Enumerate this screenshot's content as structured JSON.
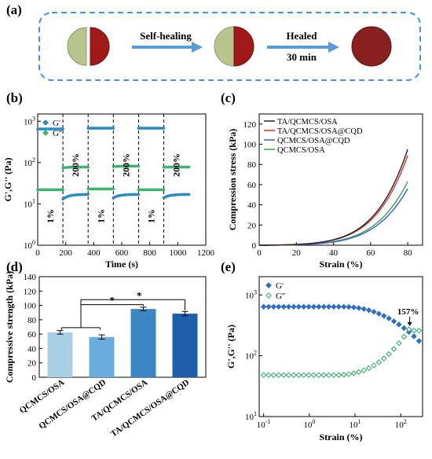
{
  "panels": {
    "a": {
      "label": "(a)",
      "arrow1_text": "Self-healing",
      "arrow2_line1": "Healed",
      "arrow2_line2": "30 min",
      "colors": {
        "dashed_border": "#4a90d9",
        "arrow": "#5b9bd5",
        "gel_green": "#b8c490",
        "gel_red": "#a01818",
        "gel_dark_red": "#8b2020"
      }
    },
    "b": {
      "label": "(b)"
    },
    "c": {
      "label": "(c)"
    },
    "d": {
      "label": "(d)"
    },
    "e": {
      "label": "(e)"
    }
  },
  "chart_data": [
    {
      "panel": "b",
      "type": "scatter",
      "xlabel": "Time (s)",
      "ylabel": "G',G'' (Pa)",
      "x_ticks": [
        0,
        200,
        400,
        600,
        800,
        1000,
        1200
      ],
      "xlim": [
        0,
        1200
      ],
      "y_scale": "log",
      "y_ticks": [
        "10^0",
        "10^1",
        "10^2",
        "10^3"
      ],
      "ylim": [
        1,
        1500
      ],
      "legend": [
        "G'",
        "G''"
      ],
      "legend_position": "top-left",
      "boundaries": [
        180,
        360,
        540,
        720,
        900
      ],
      "strain_annotations": [
        {
          "text": "1%",
          "x": 90
        },
        {
          "text": "200%",
          "x": 270
        },
        {
          "text": "1%",
          "x": 450
        },
        {
          "text": "200%",
          "x": 630
        },
        {
          "text": "1%",
          "x": 810
        },
        {
          "text": "200%",
          "x": 990
        }
      ],
      "series": [
        {
          "name": "G'",
          "color": "#2e8bc0",
          "segments": [
            {
              "x0": 0,
              "x1": 180,
              "y0": 650,
              "y1": 650
            },
            {
              "x0": 180,
              "x1": 360,
              "y0": 13,
              "y1": 17
            },
            {
              "x0": 360,
              "x1": 540,
              "y0": 680,
              "y1": 680
            },
            {
              "x0": 540,
              "x1": 720,
              "y0": 14,
              "y1": 17
            },
            {
              "x0": 720,
              "x1": 900,
              "y0": 680,
              "y1": 680
            },
            {
              "x0": 900,
              "x1": 1080,
              "y0": 14,
              "y1": 17
            }
          ]
        },
        {
          "name": "G''",
          "color": "#3cb371",
          "segments": [
            {
              "x0": 0,
              "x1": 180,
              "y0": 22,
              "y1": 22
            },
            {
              "x0": 180,
              "x1": 360,
              "y0": 75,
              "y1": 78
            },
            {
              "x0": 360,
              "x1": 540,
              "y0": 23,
              "y1": 23
            },
            {
              "x0": 540,
              "x1": 720,
              "y0": 80,
              "y1": 82
            },
            {
              "x0": 720,
              "x1": 900,
              "y0": 22,
              "y1": 22
            },
            {
              "x0": 900,
              "x1": 1080,
              "y0": 78,
              "y1": 78
            }
          ]
        }
      ]
    },
    {
      "panel": "c",
      "type": "line",
      "xlabel": "Strain (%)",
      "ylabel": "Compression stress (kPa)",
      "x_ticks": [
        0,
        20,
        40,
        60,
        80
      ],
      "xlim": [
        0,
        88
      ],
      "y_ticks": [
        0,
        20,
        40,
        60,
        80,
        100,
        120
      ],
      "ylim": [
        0,
        130
      ],
      "legend_position": "top-left",
      "series": [
        {
          "name": "TA/QCMCS/OSA",
          "color": "#222222",
          "max_y": 95
        },
        {
          "name": "TA/QCMCS/OSA@CQD",
          "color": "#e03030",
          "max_y": 89
        },
        {
          "name": "QCMCS/OSA@CQD",
          "color": "#2f5fd0",
          "max_y": 56
        },
        {
          "name": "QCMCS/OSA",
          "color": "#3aa050",
          "max_y": 63
        }
      ]
    },
    {
      "panel": "d",
      "type": "bar",
      "ylabel": "Compressive strength (kPa)",
      "categories": [
        "QCMCS/OSA",
        "QCMCS/OSA@CQD",
        "TA/QCMCS/OSA",
        "TA/QCMCS/OSA@CQD"
      ],
      "values": [
        62.5,
        56,
        95,
        88.5
      ],
      "errors": [
        2.5,
        3,
        2.5,
        3
      ],
      "colors": [
        "#a9cfe6",
        "#6aaddc",
        "#3c86c4",
        "#1f5ea8"
      ],
      "y_ticks": [
        0,
        20,
        40,
        60,
        80,
        100,
        120,
        140
      ],
      "ylim": [
        0,
        140
      ],
      "significance": [
        {
          "text": "*",
          "from": [
            0,
            1
          ],
          "to": 2
        },
        {
          "text": "*",
          "from": [
            0,
            1
          ],
          "to": 3
        }
      ]
    },
    {
      "panel": "e",
      "type": "scatter",
      "xlabel": "Strain (%)",
      "ylabel": "G',G'' (Pa)",
      "x_scale": "log",
      "x_ticks": [
        "10^-1",
        "10^0",
        "10^1",
        "10^2"
      ],
      "xlim": [
        0.08,
        300
      ],
      "y_scale": "log",
      "y_ticks": [
        "10^1",
        "10^2",
        "10^3"
      ],
      "ylim": [
        10,
        2000
      ],
      "legend": [
        "G'",
        "G''"
      ],
      "legend_position": "top-left",
      "annotation": {
        "text": "157%",
        "x": 157,
        "y": 290
      },
      "series": [
        {
          "name": "G'",
          "color": "#2e6fc0",
          "marker": "diamond-filled",
          "plateau": 640,
          "final": 175
        },
        {
          "name": "G''",
          "color": "#2aa860",
          "marker": "diamond-open",
          "plateau": 48,
          "final": 260
        }
      ]
    }
  ]
}
